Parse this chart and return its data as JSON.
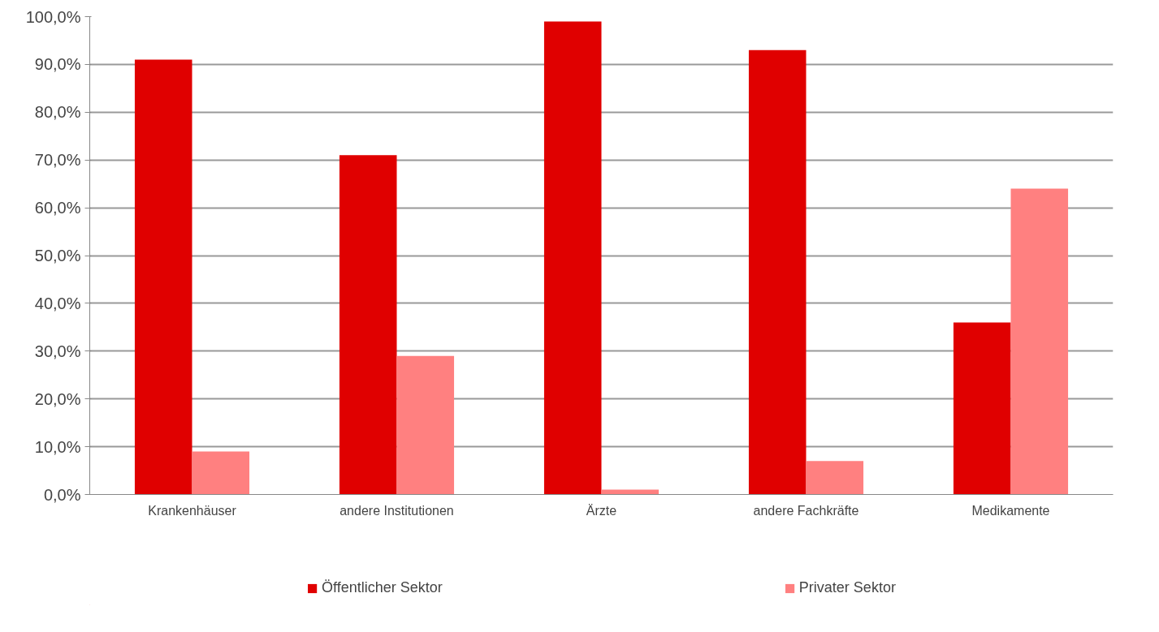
{
  "chart_data": {
    "type": "bar",
    "categories": [
      "Krankenhäuser",
      "andere Institutionen",
      "Ärzte",
      "andere Fachkräfte",
      "Medikamente"
    ],
    "series": [
      {
        "name": "Öffentlicher Sektor",
        "color": "#e00000",
        "values": [
          91,
          71,
          99,
          93,
          36
        ]
      },
      {
        "name": "Privater Sektor",
        "color": "#ff8080",
        "values": [
          9,
          29,
          1,
          7,
          64
        ]
      }
    ],
    "ylim": [
      0,
      100
    ],
    "yticks": [
      {
        "value": 0,
        "label": "0,0%"
      },
      {
        "value": 10,
        "label": "10,0%"
      },
      {
        "value": 20,
        "label": "20,0%"
      },
      {
        "value": 30,
        "label": "30,0%"
      },
      {
        "value": 40,
        "label": "40,0%"
      },
      {
        "value": 50,
        "label": "50,0%"
      },
      {
        "value": 60,
        "label": "60,0%"
      },
      {
        "value": 70,
        "label": "70,0%"
      },
      {
        "value": 80,
        "label": "80,0%"
      },
      {
        "value": 90,
        "label": "90,0%"
      },
      {
        "value": 100,
        "label": "100,0%"
      }
    ],
    "grid": "y",
    "legend": "bottom"
  }
}
